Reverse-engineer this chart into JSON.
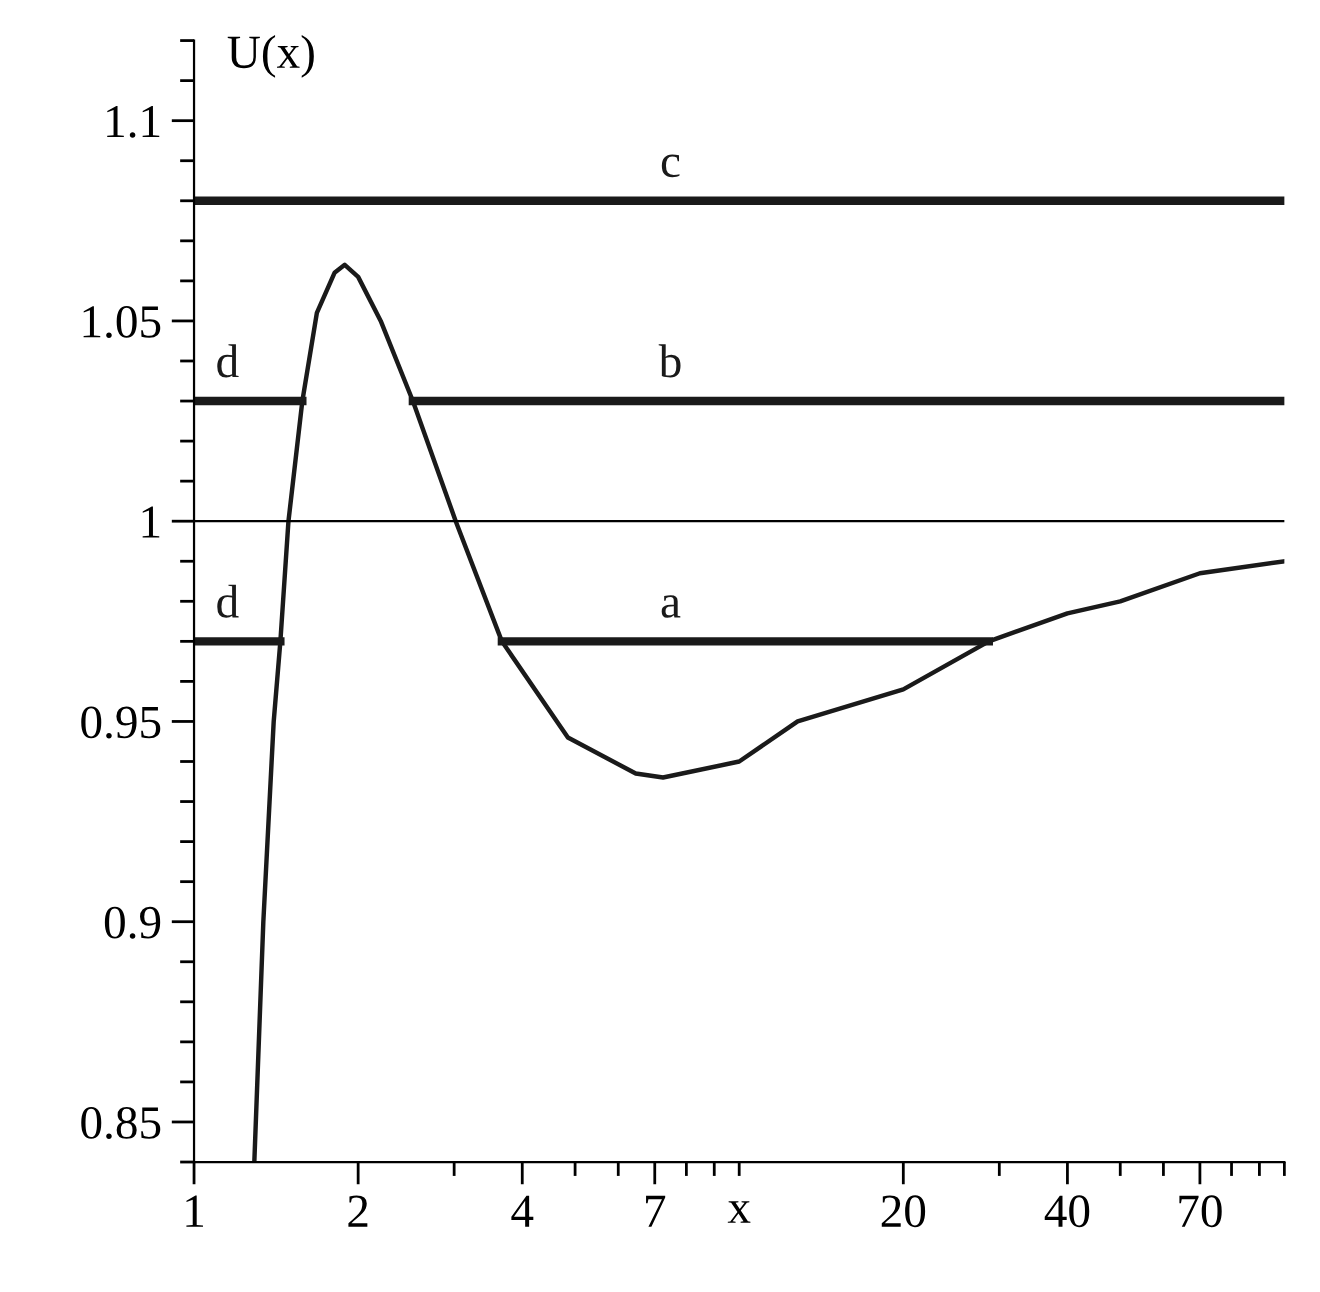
{
  "chart_data": {
    "type": "line",
    "xlabel": "x",
    "ylabel": "U(x)",
    "log": "x",
    "grid": false,
    "legend": false,
    "marker": "none",
    "line_style": "solid",
    "xlim": [
      1,
      100
    ],
    "ylim": [
      0.84,
      1.12
    ],
    "xticks": [
      1,
      2,
      {
        "value": 3,
        "label": null
      },
      4,
      {
        "value": 5,
        "label": null
      },
      {
        "value": 6,
        "label": null
      },
      7,
      {
        "value": 8,
        "label": null
      },
      {
        "value": 9,
        "label": null
      },
      {
        "value": 10,
        "label": null
      },
      20,
      {
        "value": 30,
        "label": null
      },
      40,
      {
        "value": 50,
        "label": null
      },
      {
        "value": 60,
        "label": null
      },
      70,
      {
        "value": 80,
        "label": null
      },
      {
        "value": 90,
        "label": null
      },
      {
        "value": 100,
        "label": null
      }
    ],
    "yticks": [
      {
        "value": 0.84,
        "label": null
      },
      0.85,
      {
        "value": 0.86,
        "label": null
      },
      {
        "value": 0.87,
        "label": null
      },
      {
        "value": 0.88,
        "label": null
      },
      {
        "value": 0.89,
        "label": null
      },
      0.9,
      {
        "value": 0.91,
        "label": null
      },
      {
        "value": 0.92,
        "label": null
      },
      {
        "value": 0.93,
        "label": null
      },
      {
        "value": 0.94,
        "label": null
      },
      0.95,
      {
        "value": 0.96,
        "label": null
      },
      {
        "value": 0.97,
        "label": null
      },
      {
        "value": 0.98,
        "label": null
      },
      {
        "value": 0.99,
        "label": null
      },
      1,
      {
        "value": 1.01,
        "label": null
      },
      {
        "value": 1.02,
        "label": null
      },
      {
        "value": 1.03,
        "label": null
      },
      {
        "value": 1.04,
        "label": null
      },
      1.05,
      {
        "value": 1.06,
        "label": null
      },
      {
        "value": 1.07,
        "label": null
      },
      {
        "value": 1.08,
        "label": null
      },
      {
        "value": 1.09,
        "label": null
      },
      1.1,
      {
        "value": 1.11,
        "label": null
      },
      {
        "value": 1.12,
        "label": null
      }
    ],
    "ref_lines": [
      {
        "axis": "y",
        "value": 1,
        "color": "#000000"
      }
    ],
    "series": [
      {
        "color": "#1a1a1a",
        "x": [
          1.29,
          1.34,
          1.4,
          1.44,
          1.49,
          1.58,
          1.68,
          1.81,
          1.89,
          2.0,
          2.2,
          2.52,
          3.02,
          3.67,
          4.85,
          6.46,
          7.25,
          10,
          12.8,
          20,
          28.7,
          40,
          50,
          70,
          100
        ],
        "values": [
          0.84,
          0.9,
          0.95,
          0.97,
          1.0,
          1.03,
          1.052,
          1.062,
          1.064,
          1.061,
          1.05,
          1.03,
          1.0,
          0.97,
          0.946,
          0.937,
          0.936,
          0.94,
          0.95,
          0.958,
          0.97,
          0.977,
          0.98,
          0.987,
          0.99
        ]
      },
      {
        "name": "c",
        "color": "#1a1a1a",
        "x": [
          1,
          100
        ],
        "values": [
          1.08,
          1.08
        ]
      },
      {
        "name": "b",
        "color": "#1a1a1a",
        "x": [
          2.52,
          100
        ],
        "values": [
          1.03,
          1.03
        ]
      },
      {
        "name": "d",
        "color": "#1a1a1a",
        "x": [
          1,
          1.58
        ],
        "values": [
          1.03,
          1.03
        ]
      },
      {
        "name": "a",
        "color": "#1a1a1a",
        "x": [
          3.67,
          28.7
        ],
        "values": [
          0.97,
          0.97
        ]
      },
      {
        "name": "d",
        "color": "#1a1a1a",
        "x": [
          1,
          1.44
        ],
        "values": [
          0.97,
          0.97
        ]
      }
    ]
  }
}
